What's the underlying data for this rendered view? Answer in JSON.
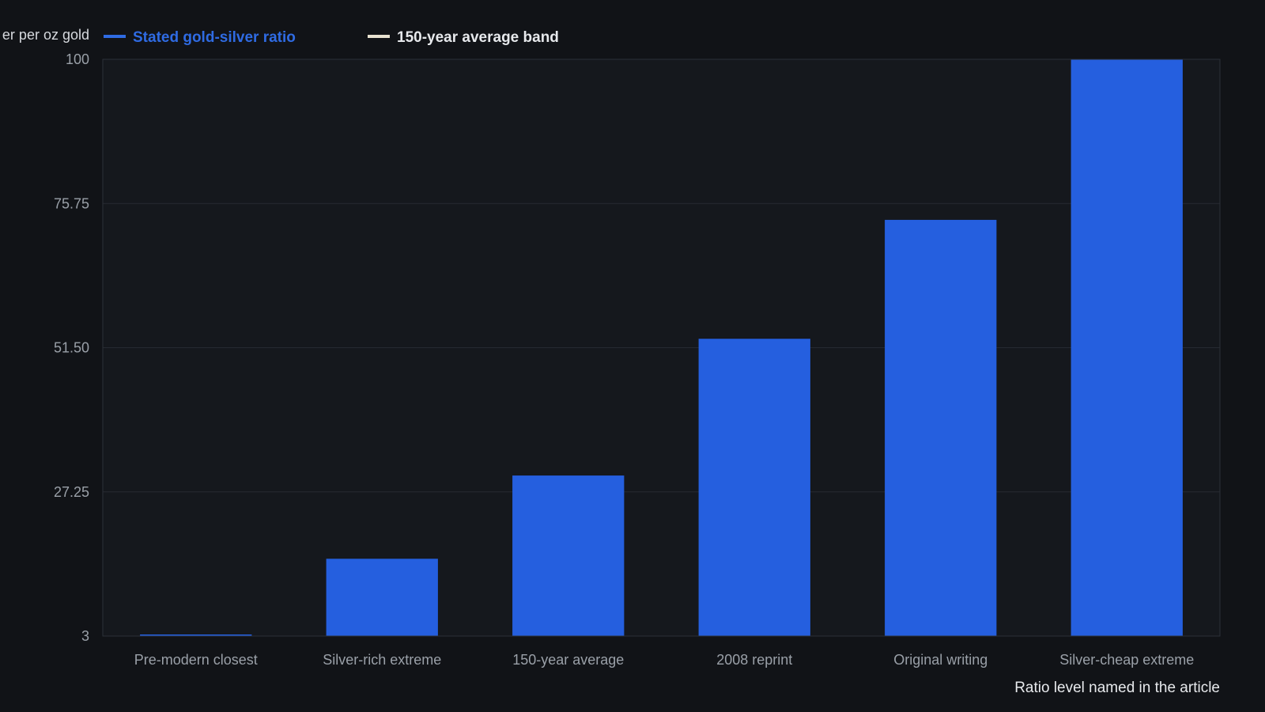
{
  "chart_data": {
    "type": "bar",
    "categories": [
      "Pre-modern closest",
      "Silver-rich extreme",
      "150-year average",
      "2008 reprint",
      "Original writing",
      "Silver-cheap extreme"
    ],
    "series": [
      {
        "name": "Stated gold-silver ratio",
        "values": [
          3,
          16,
          30,
          53,
          73,
          100
        ]
      }
    ],
    "legend": [
      {
        "label": "Stated gold-silver ratio",
        "color": "#2f6be3"
      },
      {
        "label": "150-year average band",
        "color": "#e8e2d0"
      }
    ],
    "legend_position": "top",
    "ylabel": "er per oz gold",
    "xlabel": "Ratio level named in the article",
    "ylim": [
      3,
      100
    ],
    "yticks": [
      "3",
      "27.25",
      "51.50",
      "75.75",
      "100"
    ],
    "grid": true,
    "colors": {
      "background": "#111317",
      "plot_background": "#15181d",
      "bar": "#255fdf",
      "grid": "#262a31",
      "axis": "#2c3038"
    }
  }
}
